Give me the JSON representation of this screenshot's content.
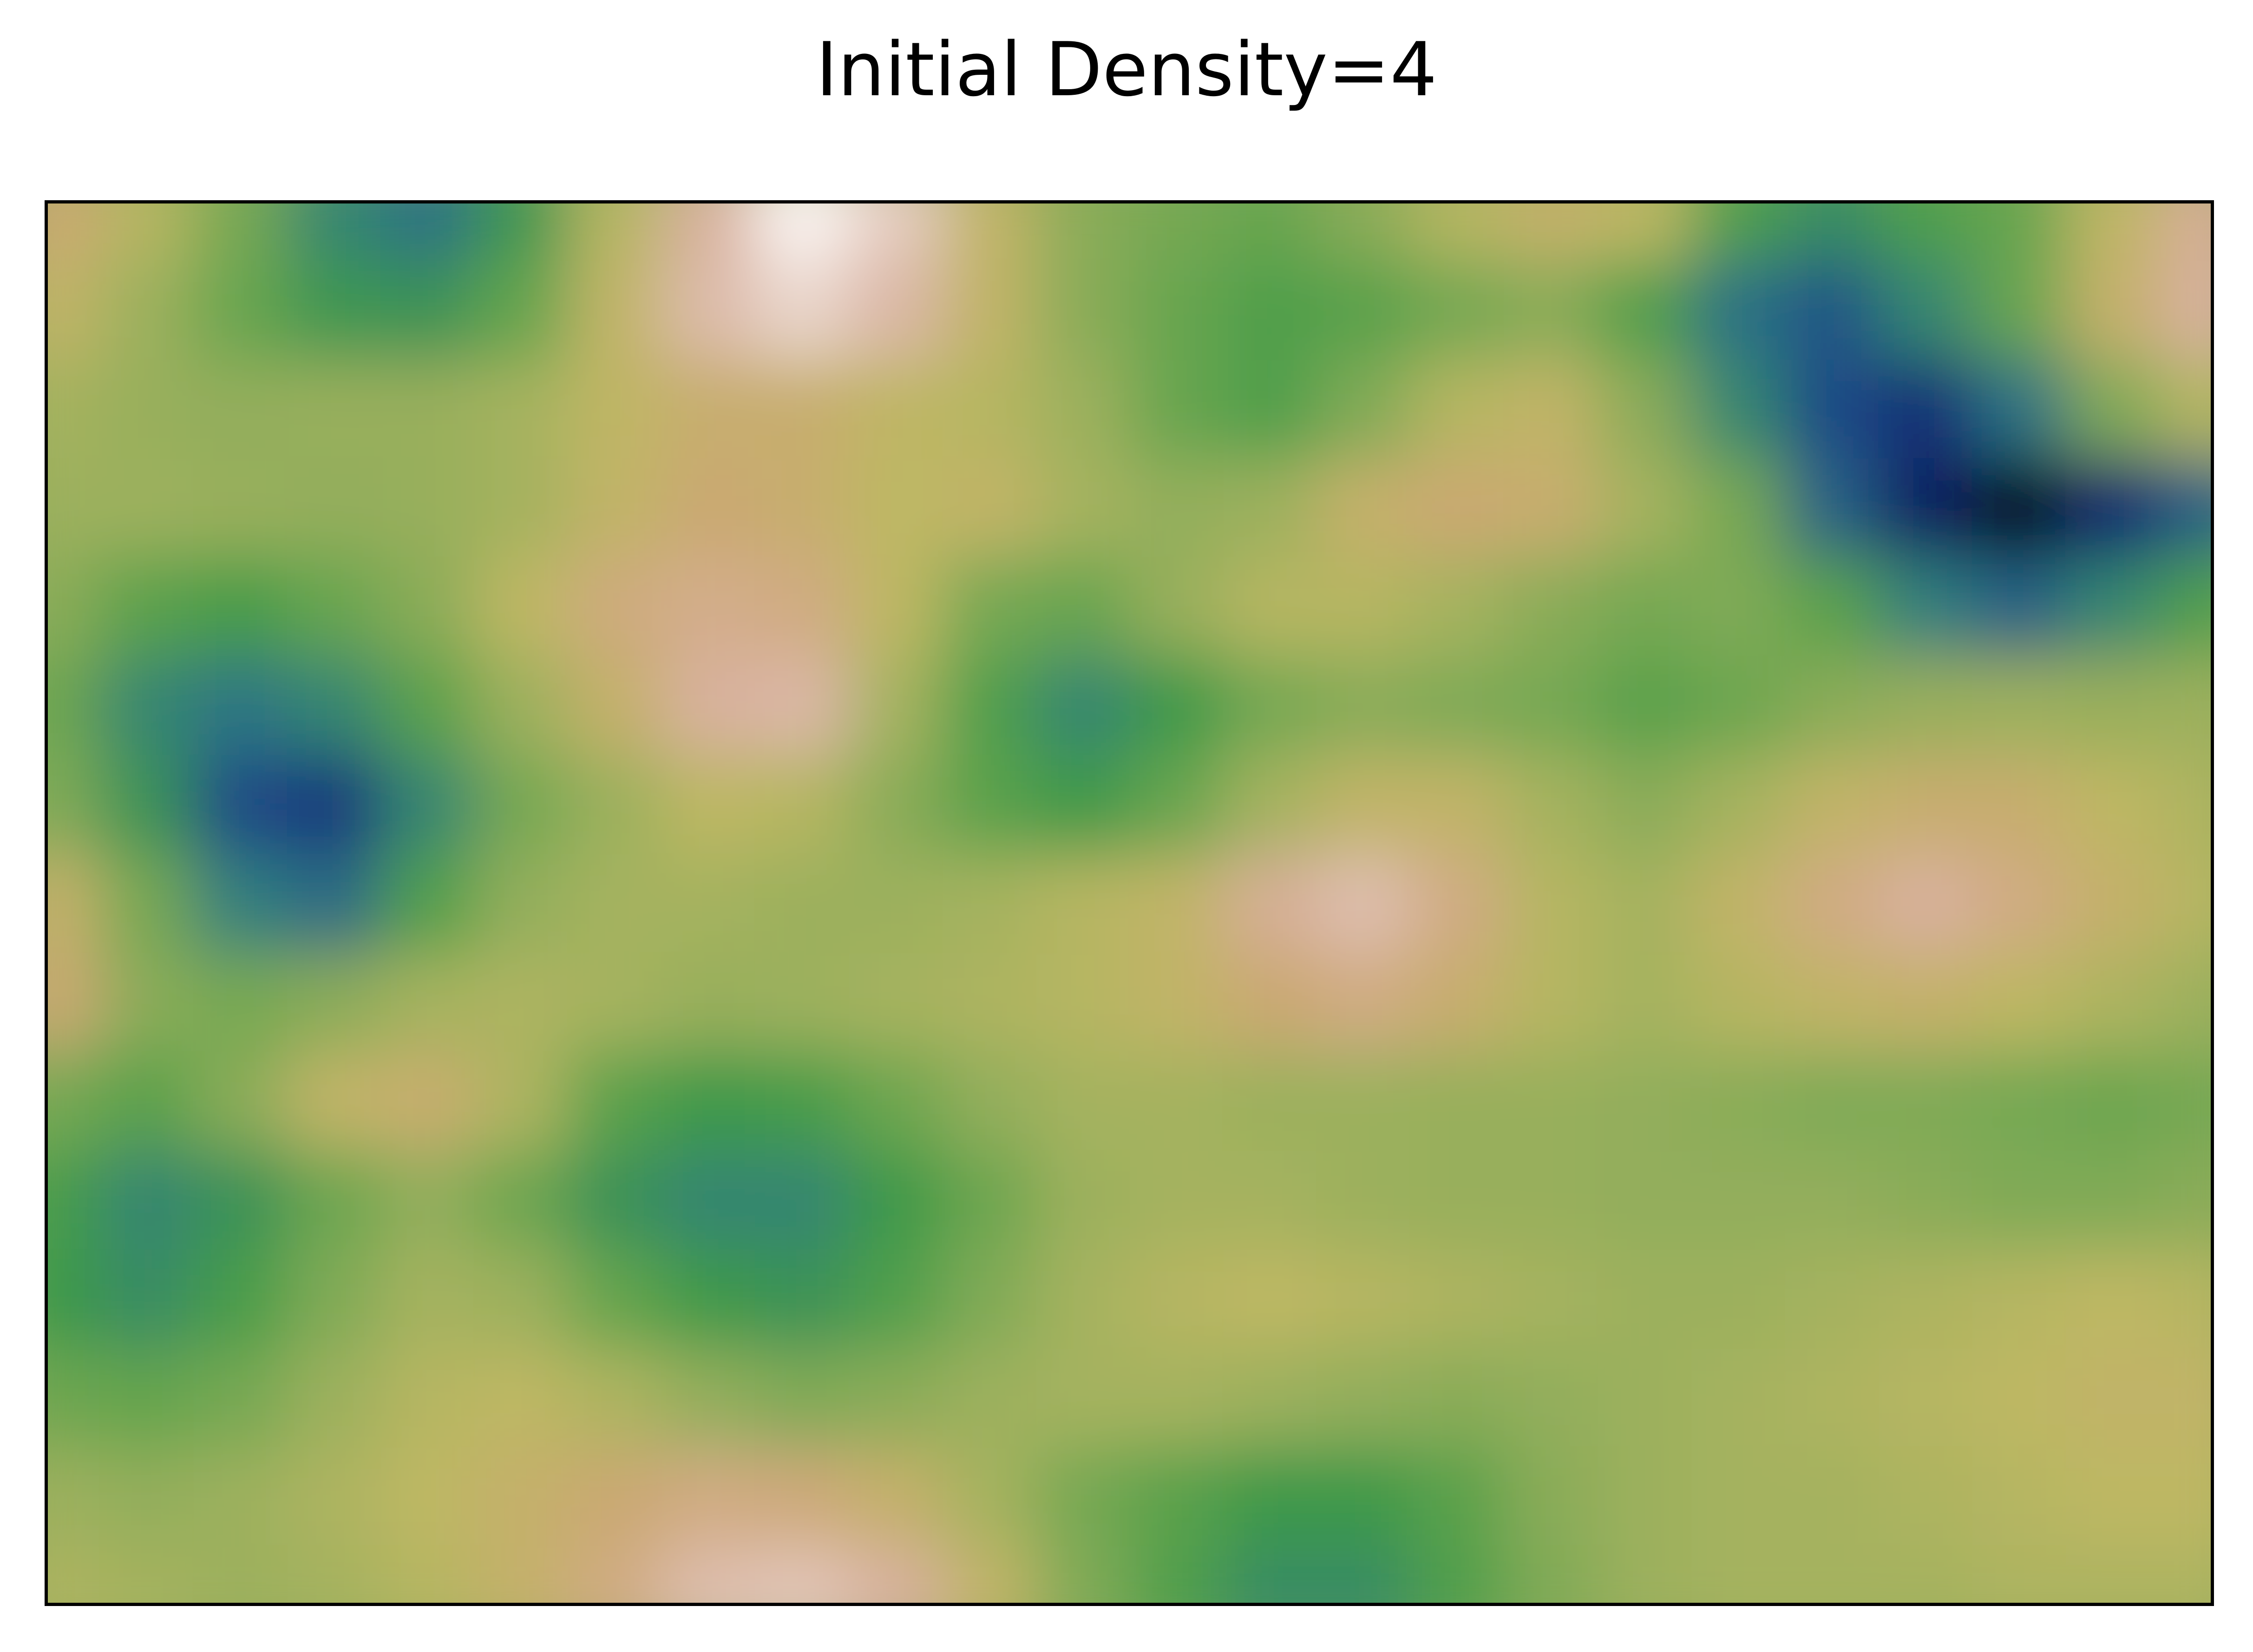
{
  "figure": {
    "title": "Initial Density=4"
  },
  "chart_data": {
    "type": "heatmap",
    "title": "Initial Density=4",
    "xlabel": "",
    "ylabel": "",
    "axes_ticks": "none",
    "grid": false,
    "legend": "none",
    "colormap": "gist_earth",
    "colormap_stops": [
      "#000000",
      "#0c1f6e",
      "#1e4b86",
      "#2f7d83",
      "#3f9a48",
      "#6aa64f",
      "#96ae5c",
      "#bdb863",
      "#cba873",
      "#d8b09c",
      "#e6cfc4",
      "#ffffff"
    ],
    "grid_cols": 24,
    "grid_rows": 15,
    "value_range": [
      0,
      1
    ],
    "field_description": "Smooth random density field; values are relative (0=low, 1=high)",
    "values": [
      [
        0.72,
        0.62,
        0.48,
        0.3,
        0.25,
        0.35,
        0.62,
        0.82,
        0.98,
        0.9,
        0.66,
        0.52,
        0.48,
        0.45,
        0.52,
        0.62,
        0.68,
        0.64,
        0.4,
        0.32,
        0.4,
        0.45,
        0.65,
        0.8
      ],
      [
        0.66,
        0.56,
        0.45,
        0.35,
        0.34,
        0.44,
        0.66,
        0.85,
        0.92,
        0.84,
        0.66,
        0.52,
        0.45,
        0.4,
        0.42,
        0.48,
        0.52,
        0.4,
        0.25,
        0.2,
        0.3,
        0.45,
        0.68,
        0.82
      ],
      [
        0.58,
        0.55,
        0.54,
        0.55,
        0.55,
        0.58,
        0.65,
        0.7,
        0.7,
        0.65,
        0.62,
        0.56,
        0.45,
        0.4,
        0.5,
        0.62,
        0.66,
        0.52,
        0.3,
        0.18,
        0.12,
        0.25,
        0.5,
        0.62
      ],
      [
        0.56,
        0.56,
        0.55,
        0.54,
        0.55,
        0.58,
        0.66,
        0.72,
        0.7,
        0.64,
        0.66,
        0.58,
        0.54,
        0.56,
        0.68,
        0.72,
        0.7,
        0.58,
        0.48,
        0.22,
        0.08,
        0.02,
        0.1,
        0.22
      ],
      [
        0.52,
        0.42,
        0.38,
        0.45,
        0.52,
        0.64,
        0.75,
        0.78,
        0.76,
        0.64,
        0.48,
        0.45,
        0.55,
        0.62,
        0.62,
        0.58,
        0.52,
        0.48,
        0.5,
        0.42,
        0.28,
        0.22,
        0.3,
        0.4
      ],
      [
        0.46,
        0.3,
        0.26,
        0.3,
        0.42,
        0.56,
        0.68,
        0.82,
        0.84,
        0.58,
        0.4,
        0.3,
        0.36,
        0.48,
        0.52,
        0.5,
        0.48,
        0.42,
        0.46,
        0.52,
        0.55,
        0.56,
        0.55,
        0.56
      ],
      [
        0.5,
        0.34,
        0.18,
        0.14,
        0.3,
        0.48,
        0.56,
        0.64,
        0.62,
        0.52,
        0.42,
        0.36,
        0.45,
        0.58,
        0.66,
        0.66,
        0.58,
        0.52,
        0.58,
        0.66,
        0.7,
        0.7,
        0.64,
        0.6
      ],
      [
        0.68,
        0.48,
        0.28,
        0.24,
        0.4,
        0.54,
        0.58,
        0.58,
        0.56,
        0.56,
        0.58,
        0.62,
        0.66,
        0.8,
        0.86,
        0.76,
        0.62,
        0.58,
        0.66,
        0.76,
        0.82,
        0.76,
        0.68,
        0.62
      ],
      [
        0.72,
        0.52,
        0.48,
        0.52,
        0.58,
        0.6,
        0.58,
        0.55,
        0.56,
        0.58,
        0.6,
        0.62,
        0.66,
        0.72,
        0.76,
        0.7,
        0.62,
        0.58,
        0.62,
        0.66,
        0.68,
        0.64,
        0.6,
        0.56
      ],
      [
        0.48,
        0.42,
        0.52,
        0.66,
        0.7,
        0.6,
        0.42,
        0.36,
        0.38,
        0.46,
        0.54,
        0.58,
        0.58,
        0.56,
        0.56,
        0.55,
        0.55,
        0.54,
        0.52,
        0.5,
        0.5,
        0.48,
        0.46,
        0.48
      ],
      [
        0.38,
        0.3,
        0.34,
        0.46,
        0.54,
        0.46,
        0.34,
        0.3,
        0.3,
        0.36,
        0.46,
        0.56,
        0.58,
        0.58,
        0.56,
        0.55,
        0.55,
        0.54,
        0.54,
        0.54,
        0.52,
        0.5,
        0.5,
        0.52
      ],
      [
        0.36,
        0.32,
        0.38,
        0.5,
        0.58,
        0.56,
        0.44,
        0.36,
        0.34,
        0.4,
        0.5,
        0.58,
        0.62,
        0.64,
        0.62,
        0.6,
        0.58,
        0.56,
        0.56,
        0.58,
        0.6,
        0.62,
        0.64,
        0.62
      ],
      [
        0.46,
        0.44,
        0.48,
        0.56,
        0.62,
        0.64,
        0.6,
        0.54,
        0.5,
        0.52,
        0.56,
        0.58,
        0.58,
        0.56,
        0.54,
        0.52,
        0.54,
        0.56,
        0.58,
        0.6,
        0.62,
        0.64,
        0.66,
        0.66
      ],
      [
        0.56,
        0.54,
        0.56,
        0.6,
        0.64,
        0.68,
        0.72,
        0.76,
        0.74,
        0.68,
        0.58,
        0.48,
        0.42,
        0.36,
        0.36,
        0.42,
        0.52,
        0.56,
        0.58,
        0.58,
        0.6,
        0.62,
        0.64,
        0.64
      ],
      [
        0.6,
        0.58,
        0.56,
        0.58,
        0.62,
        0.68,
        0.76,
        0.86,
        0.88,
        0.82,
        0.66,
        0.5,
        0.4,
        0.32,
        0.32,
        0.4,
        0.5,
        0.56,
        0.58,
        0.58,
        0.58,
        0.6,
        0.6,
        0.6
      ]
    ]
  }
}
